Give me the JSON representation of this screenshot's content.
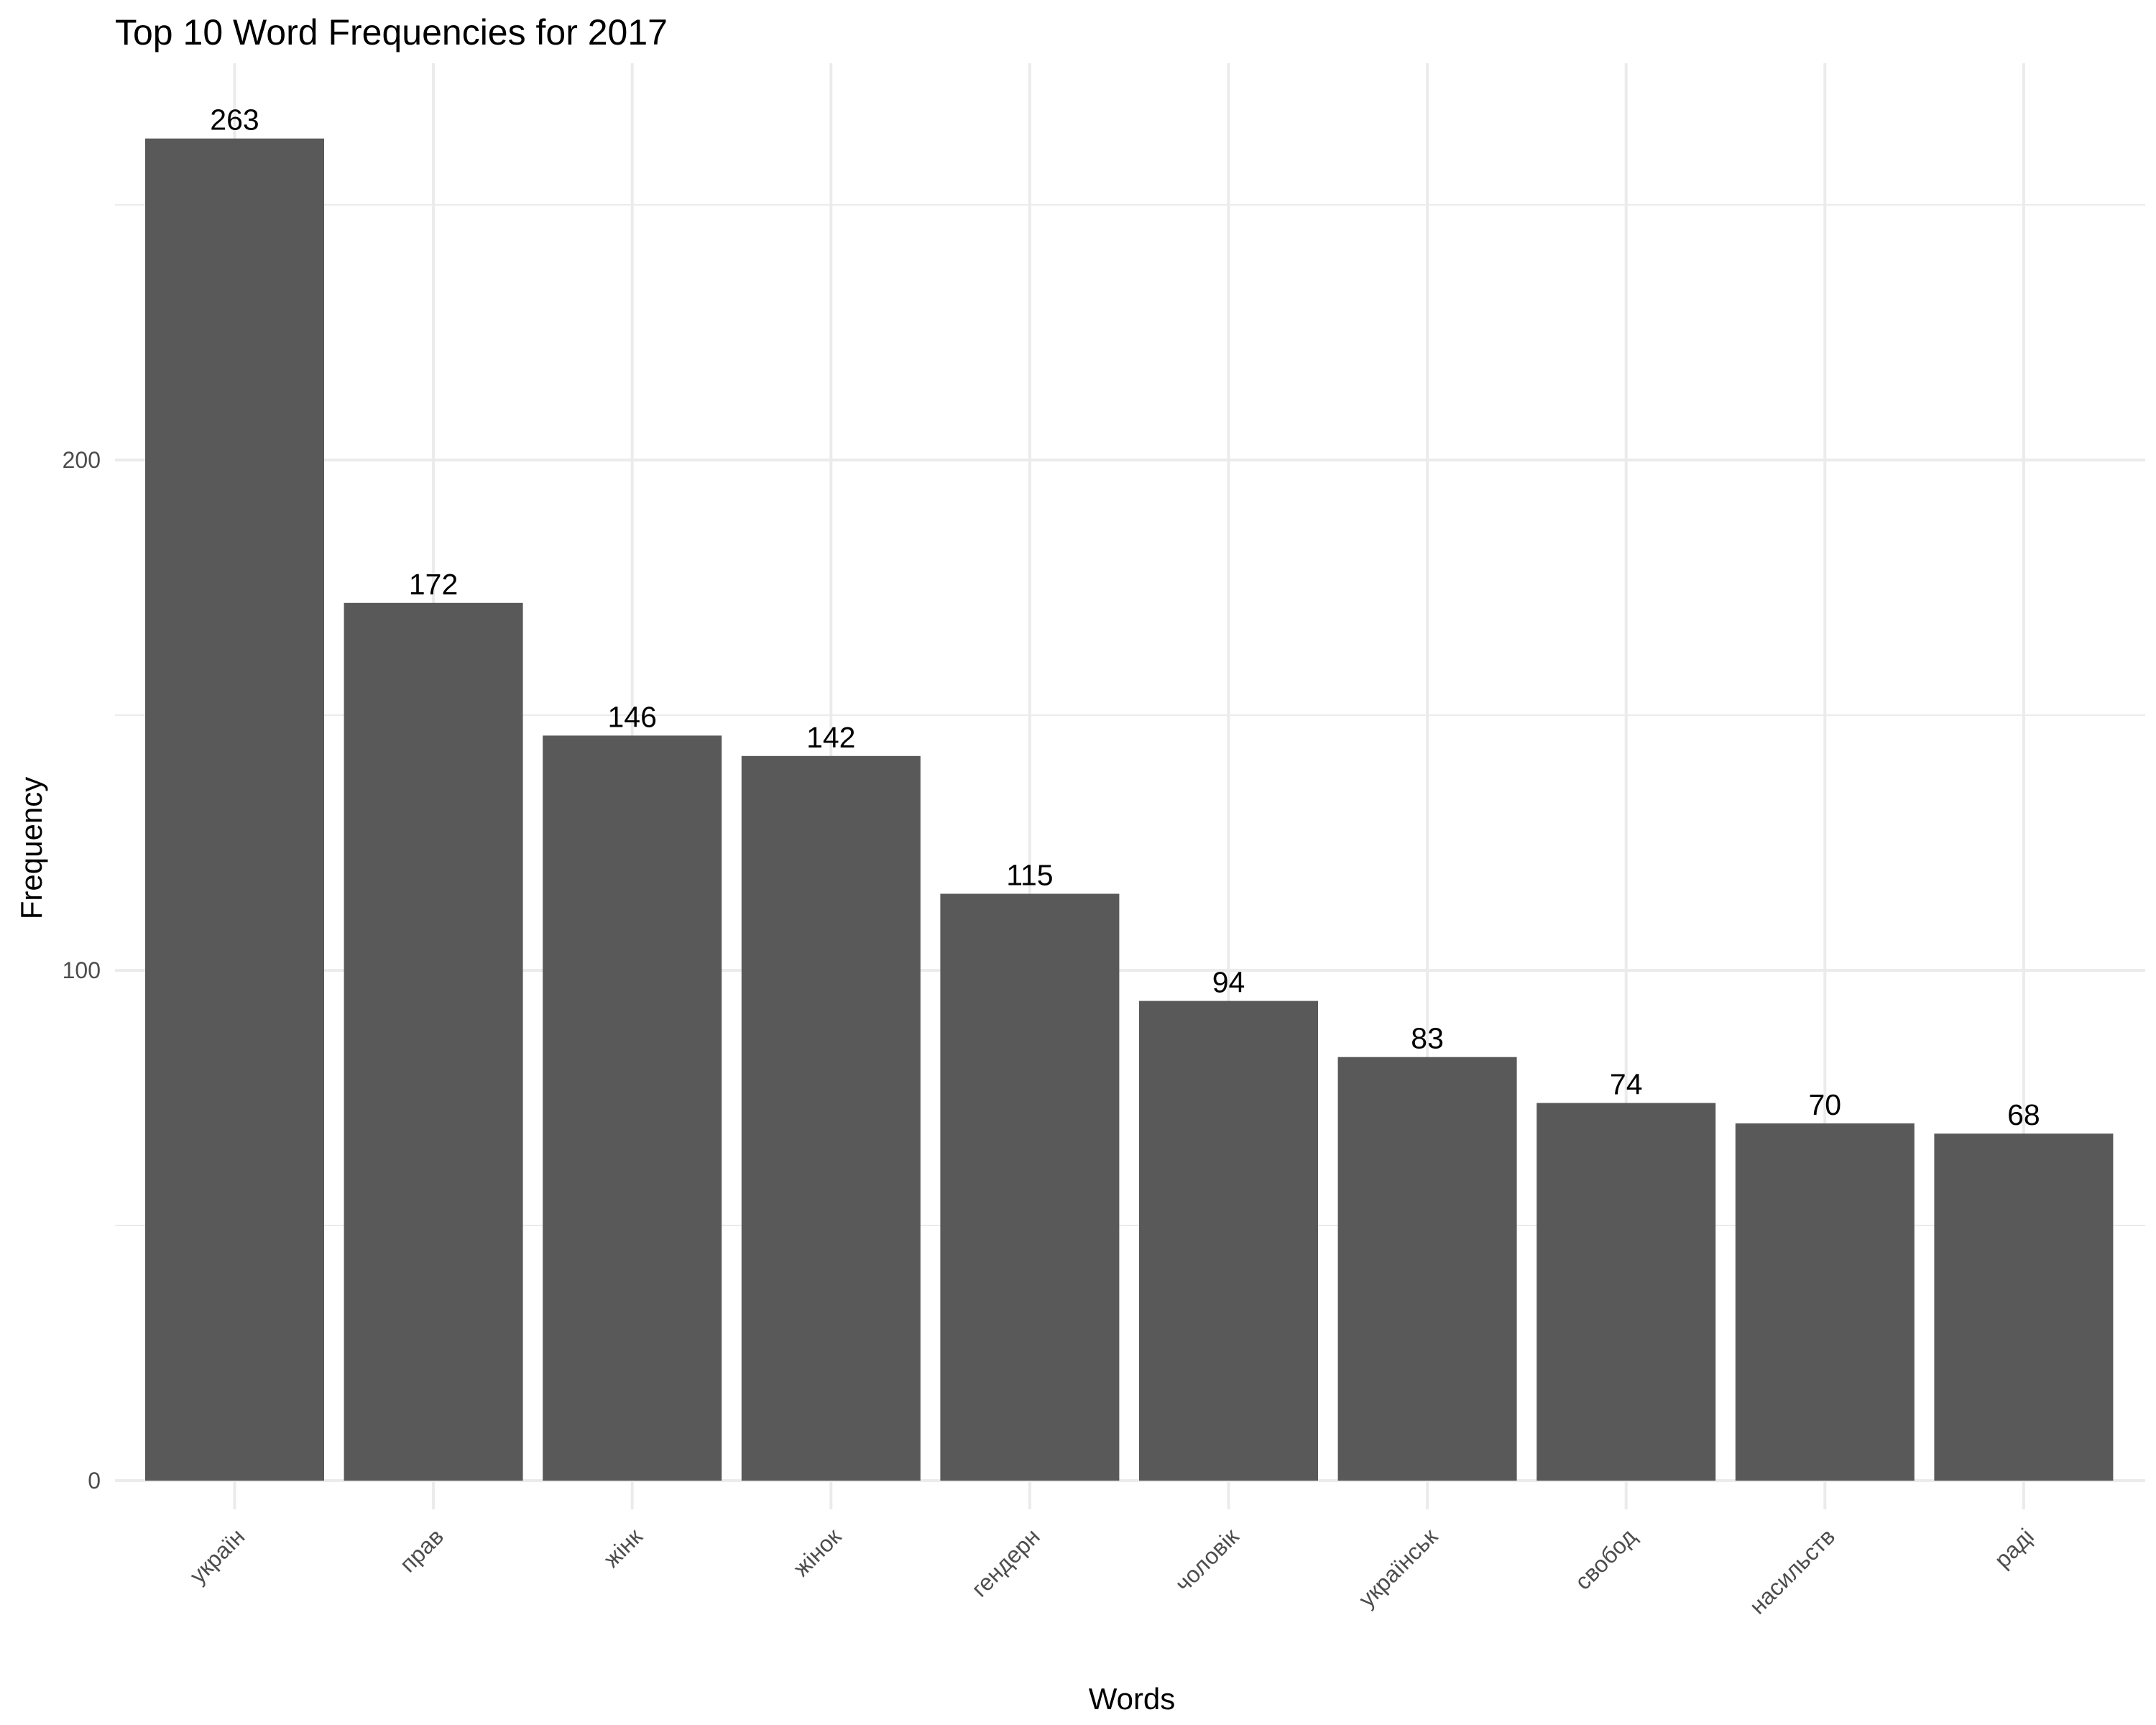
{
  "chart_data": {
    "type": "bar",
    "title": "Top 10 Word Frequencies for 2017",
    "xlabel": "Words",
    "ylabel": "Frequency",
    "categories": [
      "україн",
      "прав",
      "жінк",
      "жінок",
      "гендерн",
      "чоловік",
      "українськ",
      "свобод",
      "насильств",
      "раді"
    ],
    "values": [
      263,
      172,
      146,
      142,
      115,
      94,
      83,
      74,
      70,
      68
    ],
    "ylim": [
      0,
      263
    ],
    "yticks": [
      0,
      100,
      200
    ],
    "grid": true,
    "legend": "none",
    "bar_color": "#595959",
    "value_labels": true
  }
}
